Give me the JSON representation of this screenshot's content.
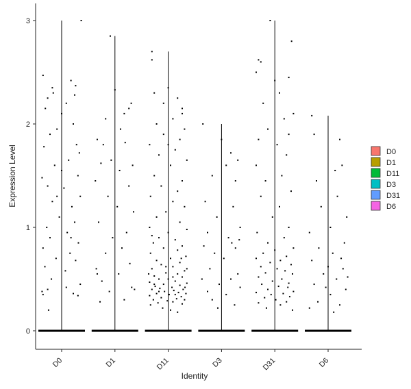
{
  "chart_data": {
    "type": "scatter",
    "subtype": "violin-jitter",
    "title": "",
    "xlabel": "Identity",
    "ylabel": "Expression Level",
    "categories": [
      "D0",
      "D1",
      "D11",
      "D3",
      "D31",
      "D6"
    ],
    "ylim": [
      -0.15,
      3.1
    ],
    "yticks": [
      0,
      1,
      2,
      3
    ],
    "grid": false,
    "legend": {
      "placement": "right",
      "entries": [
        {
          "label": "D0",
          "color": "#F8766D"
        },
        {
          "label": "D1",
          "color": "#B79F00"
        },
        {
          "label": "D11",
          "color": "#00BA38"
        },
        {
          "label": "D3",
          "color": "#00BFC4"
        },
        {
          "label": "D31",
          "color": "#619CFF"
        },
        {
          "label": "D6",
          "color": "#F564E3"
        }
      ]
    },
    "groups": [
      {
        "name": "D0",
        "max": 3.0,
        "points": [
          [
            -0.4,
            2.47
          ],
          [
            -0.3,
            2.25
          ],
          [
            -0.2,
            2.35
          ],
          [
            0.2,
            2.42
          ],
          [
            0.3,
            2.37
          ],
          [
            0.42,
            3.0
          ],
          [
            -0.35,
            2.15
          ],
          [
            0.25,
            2.0
          ],
          [
            0.1,
            2.2
          ],
          [
            -0.1,
            1.95
          ],
          [
            -0.25,
            1.9
          ],
          [
            0.32,
            1.8
          ],
          [
            0.38,
            1.72
          ],
          [
            -0.38,
            1.78
          ],
          [
            0.15,
            1.65
          ],
          [
            -0.15,
            1.6
          ],
          [
            0.35,
            1.5
          ],
          [
            -0.42,
            1.48
          ],
          [
            -0.3,
            1.4
          ],
          [
            0.05,
            1.38
          ],
          [
            0.4,
            1.3
          ],
          [
            -0.2,
            1.25
          ],
          [
            0.22,
            1.2
          ],
          [
            -0.05,
            1.1
          ],
          [
            0.28,
            1.05
          ],
          [
            -0.32,
            1.0
          ],
          [
            0.12,
            0.95
          ],
          [
            -0.25,
            0.9
          ],
          [
            0.36,
            0.85
          ],
          [
            -0.4,
            0.8
          ],
          [
            0.18,
            0.75
          ],
          [
            -0.12,
            0.7
          ],
          [
            0.3,
            0.68
          ],
          [
            -0.36,
            0.62
          ],
          [
            0.08,
            0.58
          ],
          [
            -0.22,
            0.5
          ],
          [
            0.4,
            0.45
          ],
          [
            -0.3,
            0.4
          ],
          [
            0.25,
            0.36
          ],
          [
            -0.4,
            0.35
          ],
          [
            0.35,
            0.34
          ],
          [
            -0.28,
            0.2
          ],
          [
            0.0,
            1.55
          ],
          [
            -0.1,
            1.3
          ],
          [
            0.2,
            0.9
          ],
          [
            -0.42,
            0.38
          ],
          [
            0.1,
            0.42
          ],
          [
            -0.18,
            2.3
          ],
          [
            0.28,
            2.28
          ],
          [
            0.0,
            2.1
          ]
        ]
      },
      {
        "name": "D1",
        "max": 2.85,
        "points": [
          [
            -0.1,
            2.85
          ],
          [
            0.0,
            2.33
          ],
          [
            -0.38,
            1.85
          ],
          [
            0.2,
            2.1
          ],
          [
            -0.2,
            2.05
          ],
          [
            0.35,
            2.2
          ],
          [
            -0.25,
            1.8
          ],
          [
            0.22,
            1.82
          ],
          [
            0.38,
            1.6
          ],
          [
            -0.3,
            1.62
          ],
          [
            0.1,
            1.55
          ],
          [
            -0.42,
            1.45
          ],
          [
            0.3,
            1.4
          ],
          [
            -0.15,
            1.3
          ],
          [
            0.05,
            1.2
          ],
          [
            0.4,
            1.15
          ],
          [
            -0.35,
            1.05
          ],
          [
            0.25,
            0.95
          ],
          [
            -0.05,
            0.9
          ],
          [
            0.15,
            0.8
          ],
          [
            -0.2,
            0.75
          ],
          [
            0.32,
            0.65
          ],
          [
            -0.4,
            0.6
          ],
          [
            0.08,
            0.55
          ],
          [
            -0.28,
            0.48
          ],
          [
            0.36,
            0.42
          ],
          [
            -0.12,
            0.38
          ],
          [
            0.2,
            0.3
          ],
          [
            -0.32,
            0.28
          ],
          [
            0.42,
            0.4
          ],
          [
            0.12,
            1.95
          ],
          [
            -0.08,
            1.65
          ],
          [
            0.3,
            2.15
          ],
          [
            -0.38,
            0.55
          ]
        ]
      },
      {
        "name": "D11",
        "max": 2.7,
        "points": [
          [
            -0.35,
            2.7
          ],
          [
            -0.35,
            2.62
          ],
          [
            0.0,
            2.35
          ],
          [
            -0.3,
            2.3
          ],
          [
            0.2,
            2.25
          ],
          [
            0.3,
            2.15
          ],
          [
            -0.25,
            2.0
          ],
          [
            0.1,
            2.05
          ],
          [
            0.35,
            1.95
          ],
          [
            -0.1,
            1.9
          ],
          [
            0.25,
            1.85
          ],
          [
            -0.4,
            1.8
          ],
          [
            0.15,
            1.75
          ],
          [
            -0.2,
            1.7
          ],
          [
            0.4,
            1.65
          ],
          [
            0.05,
            1.6
          ],
          [
            -0.3,
            1.5
          ],
          [
            0.3,
            1.45
          ],
          [
            -0.15,
            1.4
          ],
          [
            0.2,
            1.35
          ],
          [
            -0.38,
            1.3
          ],
          [
            0.1,
            1.25
          ],
          [
            0.35,
            1.2
          ],
          [
            -0.05,
            1.15
          ],
          [
            -0.25,
            1.1
          ],
          [
            0.25,
            1.05
          ],
          [
            -0.4,
            1.0
          ],
          [
            0.4,
            0.98
          ],
          [
            0.0,
            0.95
          ],
          [
            -0.2,
            0.9
          ],
          [
            0.15,
            0.88
          ],
          [
            -0.32,
            0.85
          ],
          [
            0.3,
            0.82
          ],
          [
            -0.1,
            0.8
          ],
          [
            0.2,
            0.78
          ],
          [
            -0.38,
            0.75
          ],
          [
            0.38,
            0.72
          ],
          [
            0.05,
            0.7
          ],
          [
            -0.25,
            0.68
          ],
          [
            0.25,
            0.66
          ],
          [
            -0.15,
            0.64
          ],
          [
            0.1,
            0.62
          ],
          [
            -0.35,
            0.6
          ],
          [
            0.35,
            0.58
          ],
          [
            -0.05,
            0.56
          ],
          [
            0.2,
            0.55
          ],
          [
            -0.3,
            0.53
          ],
          [
            0.3,
            0.52
          ],
          [
            -0.2,
            0.5
          ],
          [
            0.0,
            0.5
          ],
          [
            0.15,
            0.48
          ],
          [
            -0.4,
            0.47
          ],
          [
            0.4,
            0.46
          ],
          [
            -0.1,
            0.45
          ],
          [
            0.25,
            0.44
          ],
          [
            -0.28,
            0.43
          ],
          [
            0.08,
            0.42
          ],
          [
            -0.18,
            0.41
          ],
          [
            0.32,
            0.4
          ],
          [
            -0.35,
            0.4
          ],
          [
            0.12,
            0.39
          ],
          [
            -0.08,
            0.38
          ],
          [
            0.22,
            0.37
          ],
          [
            -0.25,
            0.36
          ],
          [
            0.38,
            0.36
          ],
          [
            0.02,
            0.35
          ],
          [
            -0.4,
            0.34
          ],
          [
            0.28,
            0.33
          ],
          [
            -0.15,
            0.32
          ],
          [
            0.18,
            0.31
          ],
          [
            -0.32,
            0.3
          ],
          [
            0.35,
            0.3
          ],
          [
            -0.02,
            0.29
          ],
          [
            0.1,
            0.28
          ],
          [
            -0.22,
            0.27
          ],
          [
            0.3,
            0.26
          ],
          [
            -0.38,
            0.25
          ],
          [
            0.05,
            0.2
          ],
          [
            0.2,
            0.18
          ],
          [
            -0.12,
            0.22
          ],
          [
            0.36,
            0.42
          ],
          [
            -0.3,
            0.45
          ],
          [
            0.1,
            0.52
          ],
          [
            -0.05,
            0.62
          ],
          [
            0.28,
            0.7
          ],
          [
            -0.35,
            0.92
          ],
          [
            0.4,
            0.6
          ],
          [
            -0.42,
            0.55
          ],
          [
            0.15,
            0.35
          ],
          [
            -0.2,
            0.38
          ],
          [
            0.0,
            1.8
          ],
          [
            0.3,
            2.1
          ],
          [
            -0.1,
            2.2
          ]
        ]
      },
      {
        "name": "D3",
        "max": 2.0,
        "points": [
          [
            -0.4,
            2.0
          ],
          [
            0.0,
            1.85
          ],
          [
            0.2,
            1.72
          ],
          [
            0.35,
            1.65
          ],
          [
            -0.2,
            1.5
          ],
          [
            0.1,
            1.6
          ],
          [
            0.3,
            1.45
          ],
          [
            -0.35,
            1.25
          ],
          [
            0.25,
            1.2
          ],
          [
            -0.1,
            1.1
          ],
          [
            0.4,
            1.0
          ],
          [
            -0.3,
            0.95
          ],
          [
            0.15,
            0.9
          ],
          [
            -0.38,
            0.82
          ],
          [
            0.3,
            0.8
          ],
          [
            -0.15,
            0.75
          ],
          [
            0.05,
            0.7
          ],
          [
            -0.25,
            0.6
          ],
          [
            0.35,
            0.55
          ],
          [
            0.2,
            0.5
          ],
          [
            -0.05,
            0.45
          ],
          [
            0.4,
            0.42
          ],
          [
            -0.3,
            0.38
          ],
          [
            0.1,
            0.35
          ],
          [
            -0.2,
            0.3
          ],
          [
            0.28,
            0.25
          ],
          [
            -0.08,
            0.22
          ],
          [
            0.22,
            0.85
          ],
          [
            -0.42,
            0.5
          ],
          [
            0.38,
            0.88
          ]
        ]
      },
      {
        "name": "D31",
        "max": 3.0,
        "points": [
          [
            -0.1,
            3.0
          ],
          [
            0.36,
            2.8
          ],
          [
            -0.35,
            2.62
          ],
          [
            -0.3,
            2.6
          ],
          [
            -0.4,
            2.5
          ],
          [
            0.0,
            2.42
          ],
          [
            0.3,
            2.45
          ],
          [
            0.1,
            2.3
          ],
          [
            -0.25,
            2.2
          ],
          [
            0.4,
            2.1
          ],
          [
            0.2,
            2.05
          ],
          [
            -0.15,
            1.95
          ],
          [
            0.3,
            1.9
          ],
          [
            -0.35,
            1.85
          ],
          [
            0.05,
            1.8
          ],
          [
            0.25,
            1.7
          ],
          [
            -0.4,
            1.6
          ],
          [
            0.15,
            1.5
          ],
          [
            -0.2,
            1.45
          ],
          [
            0.35,
            1.35
          ],
          [
            -0.3,
            1.3
          ],
          [
            0.1,
            1.2
          ],
          [
            -0.05,
            1.1
          ],
          [
            0.3,
            1.0
          ],
          [
            -0.38,
            0.95
          ],
          [
            0.2,
            0.9
          ],
          [
            -0.15,
            0.85
          ],
          [
            0.4,
            0.8
          ],
          [
            0.0,
            0.78
          ],
          [
            -0.25,
            0.75
          ],
          [
            0.25,
            0.72
          ],
          [
            -0.4,
            0.7
          ],
          [
            0.12,
            0.68
          ],
          [
            -0.1,
            0.66
          ],
          [
            0.35,
            0.64
          ],
          [
            -0.3,
            0.62
          ],
          [
            0.05,
            0.6
          ],
          [
            0.22,
            0.58
          ],
          [
            -0.2,
            0.56
          ],
          [
            0.38,
            0.55
          ],
          [
            -0.35,
            0.52
          ],
          [
            0.15,
            0.5
          ],
          [
            -0.05,
            0.48
          ],
          [
            0.3,
            0.46
          ],
          [
            -0.28,
            0.45
          ],
          [
            0.08,
            0.43
          ],
          [
            0.28,
            0.42
          ],
          [
            -0.15,
            0.4
          ],
          [
            0.4,
            0.38
          ],
          [
            -0.4,
            0.37
          ],
          [
            0.18,
            0.36
          ],
          [
            -0.08,
            0.35
          ],
          [
            0.32,
            0.33
          ],
          [
            -0.22,
            0.32
          ],
          [
            0.02,
            0.3
          ],
          [
            0.25,
            0.28
          ],
          [
            -0.35,
            0.27
          ],
          [
            0.12,
            0.25
          ],
          [
            -0.18,
            0.22
          ],
          [
            0.38,
            0.2
          ]
        ]
      },
      {
        "name": "D6",
        "max": 2.08,
        "points": [
          [
            -0.35,
            2.08
          ],
          [
            0.25,
            1.85
          ],
          [
            -0.3,
            1.9
          ],
          [
            0.15,
            1.55
          ],
          [
            0.3,
            1.6
          ],
          [
            -0.25,
            1.45
          ],
          [
            0.2,
            1.3
          ],
          [
            -0.15,
            1.2
          ],
          [
            0.4,
            1.1
          ],
          [
            0.05,
            1.0
          ],
          [
            -0.4,
            0.95
          ],
          [
            0.35,
            0.85
          ],
          [
            -0.2,
            0.8
          ],
          [
            0.1,
            0.75
          ],
          [
            0.28,
            0.7
          ],
          [
            -0.35,
            0.68
          ],
          [
            0.0,
            0.62
          ],
          [
            0.32,
            0.6
          ],
          [
            -0.1,
            0.55
          ],
          [
            0.18,
            0.5
          ],
          [
            -0.3,
            0.45
          ],
          [
            0.38,
            0.4
          ],
          [
            0.05,
            0.35
          ],
          [
            -0.22,
            0.28
          ],
          [
            0.25,
            0.25
          ],
          [
            -0.4,
            0.22
          ],
          [
            0.12,
            0.18
          ],
          [
            -0.05,
            0.42
          ],
          [
            0.42,
            0.52
          ]
        ]
      }
    ]
  }
}
